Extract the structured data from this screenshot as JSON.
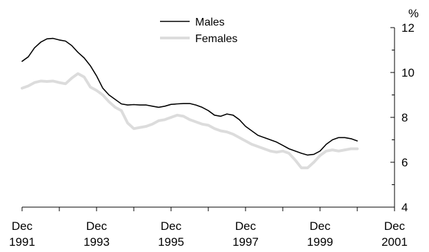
{
  "chart_data": {
    "type": "line",
    "title": "",
    "y_unit_label": "%",
    "ylim": [
      4,
      12
    ],
    "y_ticks": [
      "4",
      "6",
      "8",
      "10",
      "12"
    ],
    "x_major_ticks": [
      {
        "month": "Dec",
        "year": "1991"
      },
      {
        "month": "Dec",
        "year": "1993"
      },
      {
        "month": "Dec",
        "year": "1995"
      },
      {
        "month": "Dec",
        "year": "1997"
      },
      {
        "month": "Dec",
        "year": "1999"
      },
      {
        "month": "Dec",
        "year": "2001"
      }
    ],
    "x_range": [
      "Dec 1991",
      "Dec 2001"
    ],
    "y_axis_side": "right",
    "grid": false,
    "legend_position": "top-center",
    "series": [
      {
        "name": "Males",
        "color": "#000000",
        "points": [
          [
            "1991-12",
            10.5
          ],
          [
            "1992-02",
            10.7
          ],
          [
            "1992-04",
            11.1
          ],
          [
            "1992-06",
            11.35
          ],
          [
            "1992-08",
            11.5
          ],
          [
            "1992-10",
            11.52
          ],
          [
            "1992-12",
            11.45
          ],
          [
            "1993-02",
            11.4
          ],
          [
            "1993-04",
            11.2
          ],
          [
            "1993-06",
            10.9
          ],
          [
            "1993-08",
            10.65
          ],
          [
            "1993-10",
            10.3
          ],
          [
            "1993-12",
            9.85
          ],
          [
            "1994-02",
            9.3
          ],
          [
            "1994-04",
            9.0
          ],
          [
            "1994-06",
            8.8
          ],
          [
            "1994-08",
            8.6
          ],
          [
            "1994-10",
            8.55
          ],
          [
            "1994-12",
            8.57
          ],
          [
            "1995-02",
            8.55
          ],
          [
            "1995-04",
            8.55
          ],
          [
            "1995-06",
            8.5
          ],
          [
            "1995-08",
            8.45
          ],
          [
            "1995-10",
            8.5
          ],
          [
            "1995-12",
            8.58
          ],
          [
            "1996-02",
            8.6
          ],
          [
            "1996-04",
            8.62
          ],
          [
            "1996-06",
            8.62
          ],
          [
            "1996-08",
            8.55
          ],
          [
            "1996-10",
            8.45
          ],
          [
            "1996-12",
            8.3
          ],
          [
            "1997-02",
            8.1
          ],
          [
            "1997-04",
            8.05
          ],
          [
            "1997-06",
            8.15
          ],
          [
            "1997-08",
            8.1
          ],
          [
            "1997-10",
            7.9
          ],
          [
            "1997-12",
            7.6
          ],
          [
            "1998-02",
            7.4
          ],
          [
            "1998-04",
            7.2
          ],
          [
            "1998-06",
            7.1
          ],
          [
            "1998-08",
            7.0
          ],
          [
            "1998-10",
            6.9
          ],
          [
            "1998-12",
            6.75
          ],
          [
            "1999-02",
            6.6
          ],
          [
            "1999-04",
            6.5
          ],
          [
            "1999-06",
            6.4
          ],
          [
            "1999-08",
            6.32
          ],
          [
            "1999-10",
            6.35
          ],
          [
            "1999-12",
            6.5
          ],
          [
            "2000-02",
            6.8
          ],
          [
            "2000-04",
            7.0
          ],
          [
            "2000-06",
            7.1
          ],
          [
            "2000-08",
            7.1
          ],
          [
            "2000-10",
            7.05
          ],
          [
            "2000-12",
            6.95
          ]
        ]
      },
      {
        "name": "Females",
        "color": "#dcdcdc",
        "points": [
          [
            "1991-12",
            9.3
          ],
          [
            "1992-02",
            9.4
          ],
          [
            "1992-04",
            9.55
          ],
          [
            "1992-06",
            9.62
          ],
          [
            "1992-08",
            9.6
          ],
          [
            "1992-10",
            9.62
          ],
          [
            "1992-12",
            9.55
          ],
          [
            "1993-02",
            9.5
          ],
          [
            "1993-04",
            9.75
          ],
          [
            "1993-06",
            9.95
          ],
          [
            "1993-08",
            9.8
          ],
          [
            "1993-10",
            9.35
          ],
          [
            "1993-12",
            9.2
          ],
          [
            "1994-02",
            9.0
          ],
          [
            "1994-04",
            8.7
          ],
          [
            "1994-06",
            8.45
          ],
          [
            "1994-08",
            8.3
          ],
          [
            "1994-10",
            7.75
          ],
          [
            "1994-12",
            7.5
          ],
          [
            "1995-02",
            7.55
          ],
          [
            "1995-04",
            7.6
          ],
          [
            "1995-06",
            7.7
          ],
          [
            "1995-08",
            7.85
          ],
          [
            "1995-10",
            7.9
          ],
          [
            "1995-12",
            8.0
          ],
          [
            "1996-02",
            8.1
          ],
          [
            "1996-04",
            8.05
          ],
          [
            "1996-06",
            7.9
          ],
          [
            "1996-08",
            7.8
          ],
          [
            "1996-10",
            7.7
          ],
          [
            "1996-12",
            7.65
          ],
          [
            "1997-02",
            7.5
          ],
          [
            "1997-04",
            7.4
          ],
          [
            "1997-06",
            7.35
          ],
          [
            "1997-08",
            7.25
          ],
          [
            "1997-10",
            7.1
          ],
          [
            "1997-12",
            6.95
          ],
          [
            "1998-02",
            6.8
          ],
          [
            "1998-04",
            6.7
          ],
          [
            "1998-06",
            6.6
          ],
          [
            "1998-08",
            6.5
          ],
          [
            "1998-10",
            6.45
          ],
          [
            "1998-12",
            6.5
          ],
          [
            "1999-02",
            6.4
          ],
          [
            "1999-04",
            6.1
          ],
          [
            "1999-06",
            5.75
          ],
          [
            "1999-08",
            5.75
          ],
          [
            "1999-10",
            6.0
          ],
          [
            "1999-12",
            6.3
          ],
          [
            "2000-02",
            6.5
          ],
          [
            "2000-04",
            6.55
          ],
          [
            "2000-06",
            6.5
          ],
          [
            "2000-08",
            6.55
          ],
          [
            "2000-10",
            6.6
          ],
          [
            "2000-12",
            6.6
          ]
        ]
      }
    ]
  }
}
